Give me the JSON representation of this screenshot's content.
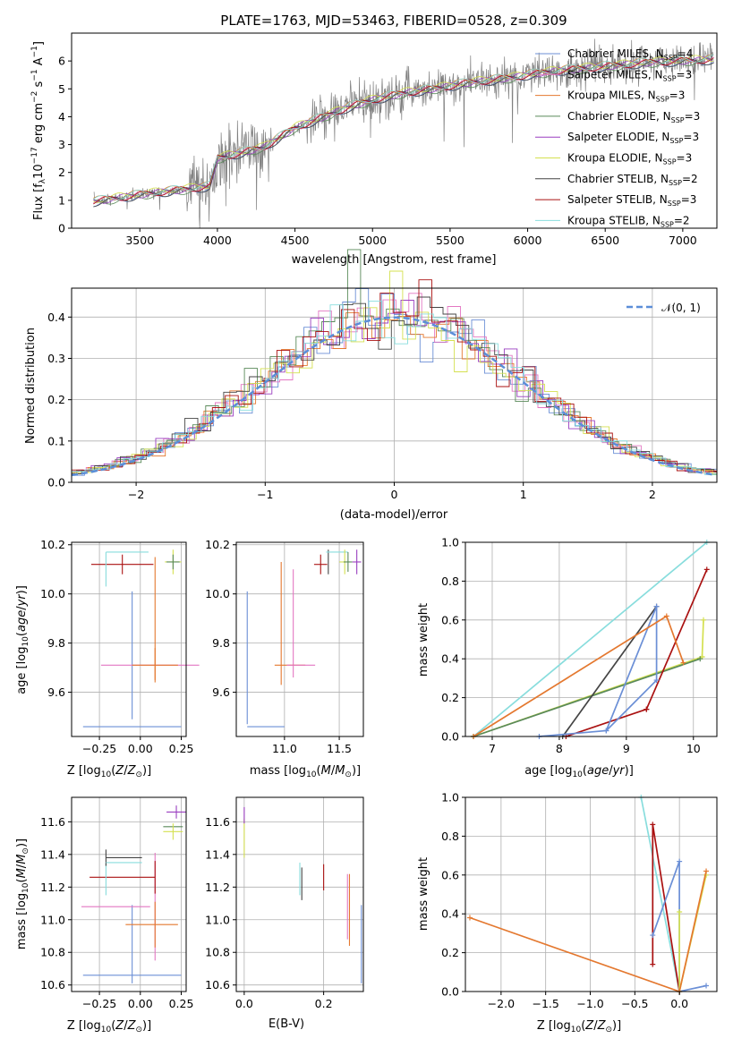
{
  "figure": {
    "title": "PLATE=1763, MJD=53463, FIBERID=0528, z=0.309"
  },
  "colors": {
    "chabrier_miles": "#6b8fd6",
    "salpeter_miles": "#e377c2",
    "kroupa_miles": "#e4782f",
    "chabrier_elodie": "#5a8a5a",
    "salpeter_elodie": "#9a3fc0",
    "kroupa_elodie": "#d4e050",
    "chabrier_stelib": "#444444",
    "salpeter_stelib": "#aa1111",
    "kroupa_stelib": "#88dddd",
    "data": "#808080",
    "grid": "#b0b0b0",
    "normal": "#5b8ed8"
  },
  "chart_data": [
    {
      "type": "line",
      "xlabel": "wavelength [Angstrom, rest frame]",
      "ylabel": "Flux [f$_\\lambda$10$^{-17}$ erg cm$^{-2}$ s$^{-1}$ A$^{-1}$]",
      "xlim": [
        3060,
        7220
      ],
      "ylim": [
        0,
        7
      ],
      "xticks": [
        "3500",
        "4000",
        "4500",
        "5000",
        "5500",
        "6000",
        "6500",
        "7000"
      ],
      "yticks": [
        "0",
        "1",
        "2",
        "3",
        "4",
        "5",
        "6"
      ],
      "grid": false,
      "legend_position": "top-right",
      "model_continuum": {
        "x": [
          3200,
          3500,
          3800,
          3950,
          4000,
          4300,
          4500,
          4850,
          5000,
          5200,
          5400,
          5600,
          5900,
          6000,
          6200,
          6500,
          6800,
          7000,
          7200
        ],
        "y": [
          0.95,
          1.2,
          1.4,
          1.5,
          2.5,
          2.9,
          3.6,
          4.35,
          4.6,
          4.85,
          5.0,
          5.2,
          5.4,
          5.5,
          5.65,
          5.8,
          5.95,
          6.0,
          6.05
        ]
      },
      "legend": [
        {
          "text": "Chabrier MILES, N$_{SSP}$=4",
          "color_key": "chabrier_miles"
        },
        {
          "text": "Salpeter MILES, N$_{SSP}$=3",
          "color_key": "salpeter_miles"
        },
        {
          "text": "Kroupa MILES, N$_{SSP}$=3",
          "color_key": "kroupa_miles"
        },
        {
          "text": "Chabrier ELODIE, N$_{SSP}$=3",
          "color_key": "chabrier_elodie"
        },
        {
          "text": "Salpeter ELODIE, N$_{SSP}$=3",
          "color_key": "salpeter_elodie"
        },
        {
          "text": "Kroupa ELODIE, N$_{SSP}$=3",
          "color_key": "kroupa_elodie"
        },
        {
          "text": "Chabrier STELIB, N$_{SSP}$=2",
          "color_key": "chabrier_stelib"
        },
        {
          "text": "Salpeter STELIB, N$_{SSP}$=3",
          "color_key": "salpeter_stelib"
        },
        {
          "text": "Kroupa STELIB, N$_{SSP}$=2",
          "color_key": "kroupa_stelib"
        }
      ]
    },
    {
      "type": "line",
      "xlabel": "(data-model)/error",
      "ylabel": "Normed distribution",
      "xlim": [
        -2.5,
        2.5
      ],
      "ylim": [
        0,
        0.47
      ],
      "xticks": [
        "−2",
        "−1",
        "0",
        "1",
        "2"
      ],
      "yticks": [
        "0.0",
        "0.1",
        "0.2",
        "0.3",
        "0.4"
      ],
      "grid": true,
      "legend_position": "top-right",
      "legend_text": "𝒩(0, 1)",
      "bin_width": 0.1
    },
    {
      "type": "scatter",
      "xlabel": "Z [log$_{10}$(Z/Z$_\\odot$)]",
      "ylabel": "age  [log$_{10}$(age/yr)]",
      "xlim": [
        -0.42,
        0.28
      ],
      "ylim": [
        9.42,
        10.21
      ],
      "xticks": [
        -0.25,
        0.0,
        0.25
      ],
      "xtick_labels": [
        "−0.25",
        "0.00",
        "0.25"
      ],
      "yticks": [
        9.6,
        9.8,
        10.0,
        10.2
      ],
      "ytick_labels": [
        "9.6",
        "9.8",
        "10.0",
        "10.2"
      ],
      "errorbars": [
        {
          "color_key": "chabrier_miles",
          "x": -0.05,
          "y": 9.46,
          "xerr": 0.3,
          "yerr": 0
        },
        {
          "color_key": "chabrier_miles",
          "x": -0.05,
          "y": 9.75,
          "xerr": 0,
          "yerr": 0.26
        },
        {
          "color_key": "salpeter_miles",
          "x": 0.06,
          "y": 9.71,
          "xerr": 0.3,
          "yerr": 0
        },
        {
          "color_key": "kroupa_miles",
          "x": 0.09,
          "y": 9.71,
          "xerr": 0.14,
          "yerr": 0.07
        },
        {
          "color_key": "kroupa_miles",
          "x": 0.09,
          "y": 9.9,
          "xerr": 0,
          "yerr": 0.25
        },
        {
          "color_key": "salpeter_stelib",
          "x": -0.11,
          "y": 10.12,
          "xerr": 0.19,
          "yerr": 0.04
        },
        {
          "color_key": "kroupa_stelib",
          "x": -0.08,
          "y": 10.17,
          "xerr": 0.13,
          "yerr": 0
        },
        {
          "color_key": "kroupa_stelib",
          "x": -0.21,
          "y": 10.1,
          "xerr": 0,
          "yerr": 0.07
        },
        {
          "color_key": "kroupa_elodie",
          "x": 0.2,
          "y": 10.13,
          "xerr": 0.05,
          "yerr": 0.05
        },
        {
          "color_key": "chabrier_elodie",
          "x": 0.2,
          "y": 10.13,
          "xerr": 0.04,
          "yerr": 0.03
        }
      ]
    },
    {
      "type": "scatter",
      "xlabel": "mass [log$_{10}$(M/M$_\\odot$)]",
      "ylabel": "",
      "xlim": [
        10.56,
        11.72
      ],
      "ylim": [
        9.42,
        10.21
      ],
      "xticks": [
        11.0,
        11.5
      ],
      "xtick_labels": [
        "11.0",
        "11.5"
      ],
      "yticks": [
        9.6,
        9.8,
        10.0,
        10.2
      ],
      "ytick_labels": [
        "9.6",
        "9.8",
        "10.0",
        "10.2"
      ],
      "errorbars": [
        {
          "color_key": "chabrier_miles",
          "x": 10.66,
          "y": 9.74,
          "xerr": 0,
          "yerr": 0.27
        },
        {
          "color_key": "chabrier_miles",
          "x": 10.83,
          "y": 9.46,
          "xerr": 0.17,
          "yerr": 0
        },
        {
          "color_key": "kroupa_miles",
          "x": 10.97,
          "y": 9.88,
          "xerr": 0,
          "yerr": 0.25
        },
        {
          "color_key": "salpeter_miles",
          "x": 11.08,
          "y": 9.88,
          "xerr": 0,
          "yerr": 0.22
        },
        {
          "color_key": "kroupa_miles",
          "x": 11.05,
          "y": 9.71,
          "xerr": 0.14,
          "yerr": 0
        },
        {
          "color_key": "salpeter_miles",
          "x": 11.15,
          "y": 9.71,
          "xerr": 0.13,
          "yerr": 0
        },
        {
          "color_key": "salpeter_stelib",
          "x": 11.33,
          "y": 10.12,
          "xerr": 0.06,
          "yerr": 0.04
        },
        {
          "color_key": "chabrier_stelib",
          "x": 11.4,
          "y": 10.13,
          "xerr": 0,
          "yerr": 0.05
        },
        {
          "color_key": "kroupa_stelib",
          "x": 11.48,
          "y": 10.17,
          "xerr": 0.1,
          "yerr": 0
        },
        {
          "color_key": "kroupa_elodie",
          "x": 11.55,
          "y": 10.13,
          "xerr": 0.05,
          "yerr": 0.05
        },
        {
          "color_key": "chabrier_elodie",
          "x": 11.58,
          "y": 10.13,
          "xerr": 0.04,
          "yerr": 0.04
        },
        {
          "color_key": "salpeter_elodie",
          "x": 11.66,
          "y": 10.13,
          "xerr": 0.04,
          "yerr": 0.05
        }
      ]
    },
    {
      "type": "line",
      "xlabel": "age  [log$_{10}$(age/yr)]",
      "ylabel": "mass weight",
      "xlim": [
        6.6,
        10.35
      ],
      "ylim": [
        0,
        1
      ],
      "xticks": [
        7,
        8,
        9,
        10
      ],
      "xtick_labels": [
        "7",
        "8",
        "9",
        "10"
      ],
      "yticks": [
        0,
        0.2,
        0.4,
        0.6,
        0.8,
        1.0
      ],
      "ytick_labels": [
        "0.0",
        "0.2",
        "0.4",
        "0.6",
        "0.8",
        "1.0"
      ],
      "grid": true,
      "series": [
        {
          "color_key": "kroupa_stelib",
          "x": [
            6.72,
            10.2
          ],
          "y": [
            0.0,
            1.0
          ]
        },
        {
          "color_key": "kroupa_elodie",
          "x": [
            6.72,
            10.13,
            10.15,
            10.13
          ],
          "y": [
            0.0,
            0.41,
            0.6,
            0.41
          ]
        },
        {
          "color_key": "chabrier_elodie",
          "x": [
            6.72,
            10.1
          ],
          "y": [
            0.0,
            0.4
          ]
        },
        {
          "color_key": "salpeter_stelib",
          "x": [
            8.1,
            9.3,
            10.2,
            9.3
          ],
          "y": [
            0.0,
            0.14,
            0.86,
            0.14
          ]
        },
        {
          "color_key": "chabrier_stelib",
          "x": [
            8.05,
            9.45
          ],
          "y": [
            0.0,
            0.67
          ]
        },
        {
          "color_key": "chabrier_miles",
          "x": [
            7.7,
            8.7,
            9.45,
            9.45,
            8.7
          ],
          "y": [
            0.0,
            0.03,
            0.67,
            0.29,
            0.03
          ]
        },
        {
          "color_key": "kroupa_miles",
          "x": [
            6.72,
            9.6,
            9.85
          ],
          "y": [
            0.0,
            0.62,
            0.38
          ]
        }
      ]
    },
    {
      "type": "scatter",
      "xlabel": "Z [log$_{10}$(Z/Z$_\\odot$)]",
      "ylabel": "mass [log$_{10}$(M/M$_\\odot$)]",
      "xlim": [
        -0.42,
        0.28
      ],
      "ylim": [
        10.56,
        11.75
      ],
      "xticks": [
        -0.25,
        0.0,
        0.25
      ],
      "xtick_labels": [
        "−0.25",
        "0.00",
        "0.25"
      ],
      "yticks": [
        10.6,
        10.8,
        11.0,
        11.2,
        11.4,
        11.6
      ],
      "ytick_labels": [
        "10.6",
        "10.8",
        "11.0",
        "11.2",
        "11.4",
        "11.6"
      ],
      "errorbars": [
        {
          "color_key": "chabrier_miles",
          "x": -0.05,
          "y": 10.66,
          "xerr": 0.3,
          "yerr": 0
        },
        {
          "color_key": "chabrier_miles",
          "x": -0.05,
          "y": 10.85,
          "xerr": 0,
          "yerr": 0.24
        },
        {
          "color_key": "salpeter_miles",
          "x": -0.15,
          "y": 11.08,
          "xerr": 0.21,
          "yerr": 0
        },
        {
          "color_key": "salpeter_miles",
          "x": 0.09,
          "y": 11.08,
          "xerr": 0,
          "yerr": 0.33
        },
        {
          "color_key": "kroupa_miles",
          "x": 0.07,
          "y": 10.97,
          "xerr": 0.16,
          "yerr": 0
        },
        {
          "color_key": "kroupa_miles",
          "x": 0.09,
          "y": 10.97,
          "xerr": 0,
          "yerr": 0.14
        },
        {
          "color_key": "salpeter_stelib",
          "x": -0.11,
          "y": 11.26,
          "xerr": 0.2,
          "yerr": 0
        },
        {
          "color_key": "salpeter_stelib",
          "x": 0.09,
          "y": 11.26,
          "xerr": 0,
          "yerr": 0.1
        },
        {
          "color_key": "kroupa_stelib",
          "x": -0.21,
          "y": 11.25,
          "xerr": 0,
          "yerr": 0.1
        },
        {
          "color_key": "chabrier_stelib",
          "x": -0.1,
          "y": 11.38,
          "xerr": 0.11,
          "yerr": 0
        },
        {
          "color_key": "chabrier_stelib",
          "x": -0.21,
          "y": 11.38,
          "xerr": 0,
          "yerr": 0.05
        },
        {
          "color_key": "kroupa_stelib",
          "x": -0.1,
          "y": 11.35,
          "xerr": 0.11,
          "yerr": 0
        },
        {
          "color_key": "salpeter_elodie",
          "x": 0.22,
          "y": 11.66,
          "xerr": 0.06,
          "yerr": 0.04
        },
        {
          "color_key": "chabrier_elodie",
          "x": 0.2,
          "y": 11.57,
          "xerr": 0.06,
          "yerr": 0
        },
        {
          "color_key": "kroupa_elodie",
          "x": 0.2,
          "y": 11.54,
          "xerr": 0.06,
          "yerr": 0.05
        }
      ]
    },
    {
      "type": "scatter",
      "xlabel": "E(B-V)",
      "ylabel": "",
      "xlim": [
        -0.02,
        0.3
      ],
      "ylim": [
        10.56,
        11.75
      ],
      "xticks": [
        0.0,
        0.2
      ],
      "xtick_labels": [
        "0.0",
        "0.2"
      ],
      "yticks": [
        10.6,
        10.8,
        11.0,
        11.2,
        11.4,
        11.6
      ],
      "ytick_labels": [
        "10.6",
        "10.8",
        "11.0",
        "11.2",
        "11.4",
        "11.6"
      ],
      "errorbars": [
        {
          "color_key": "kroupa_elodie",
          "x": 0.0,
          "y": 11.5,
          "xerr": 0,
          "yerr": 0.12
        },
        {
          "color_key": "salpeter_elodie",
          "x": 0.0,
          "y": 11.64,
          "xerr": 0,
          "yerr": 0.05
        },
        {
          "color_key": "chabrier_stelib",
          "x": 0.145,
          "y": 11.22,
          "xerr": 0,
          "yerr": 0.1
        },
        {
          "color_key": "kroupa_stelib",
          "x": 0.14,
          "y": 11.25,
          "xerr": 0,
          "yerr": 0.1
        },
        {
          "color_key": "salpeter_stelib",
          "x": 0.2,
          "y": 11.26,
          "xerr": 0,
          "yerr": 0.08
        },
        {
          "color_key": "salpeter_miles",
          "x": 0.26,
          "y": 11.08,
          "xerr": 0,
          "yerr": 0.2
        },
        {
          "color_key": "kroupa_miles",
          "x": 0.265,
          "y": 11.06,
          "xerr": 0,
          "yerr": 0.22
        },
        {
          "color_key": "chabrier_miles",
          "x": 0.295,
          "y": 10.85,
          "xerr": 0,
          "yerr": 0.24
        }
      ]
    },
    {
      "type": "line",
      "xlabel": "Z [log$_{10}$(Z/Z$_\\odot$)]",
      "ylabel": "mass weight",
      "xlim": [
        -2.4,
        0.42
      ],
      "ylim": [
        0,
        1
      ],
      "xticks": [
        -2.0,
        -1.5,
        -1.0,
        -0.5,
        0.0
      ],
      "xtick_labels": [
        "−2.0",
        "−1.5",
        "−1.0",
        "−0.5",
        "0.0"
      ],
      "yticks": [
        0,
        0.2,
        0.4,
        0.6,
        0.8,
        1.0
      ],
      "ytick_labels": [
        "0.0",
        "0.2",
        "0.4",
        "0.6",
        "0.8",
        "1.0"
      ],
      "grid": true,
      "series": [
        {
          "color_key": "kroupa_stelib",
          "x": [
            -0.43,
            0.0
          ],
          "y": [
            1.0,
            0.0
          ]
        },
        {
          "color_key": "salpeter_stelib",
          "x": [
            -0.3,
            -0.3,
            0.0
          ],
          "y": [
            0.14,
            0.86,
            0.0
          ]
        },
        {
          "color_key": "chabrier_miles",
          "x": [
            -0.3,
            0.0,
            0.0,
            0.3
          ],
          "y": [
            0.29,
            0.67,
            0.0,
            0.03
          ]
        },
        {
          "color_key": "kroupa_elodie",
          "x": [
            0.0,
            0.0,
            0.3
          ],
          "y": [
            0.41,
            0.0,
            0.6
          ]
        },
        {
          "color_key": "kroupa_miles",
          "x": [
            -2.35,
            0.0,
            0.3
          ],
          "y": [
            0.38,
            0.0,
            0.62
          ]
        }
      ]
    }
  ]
}
